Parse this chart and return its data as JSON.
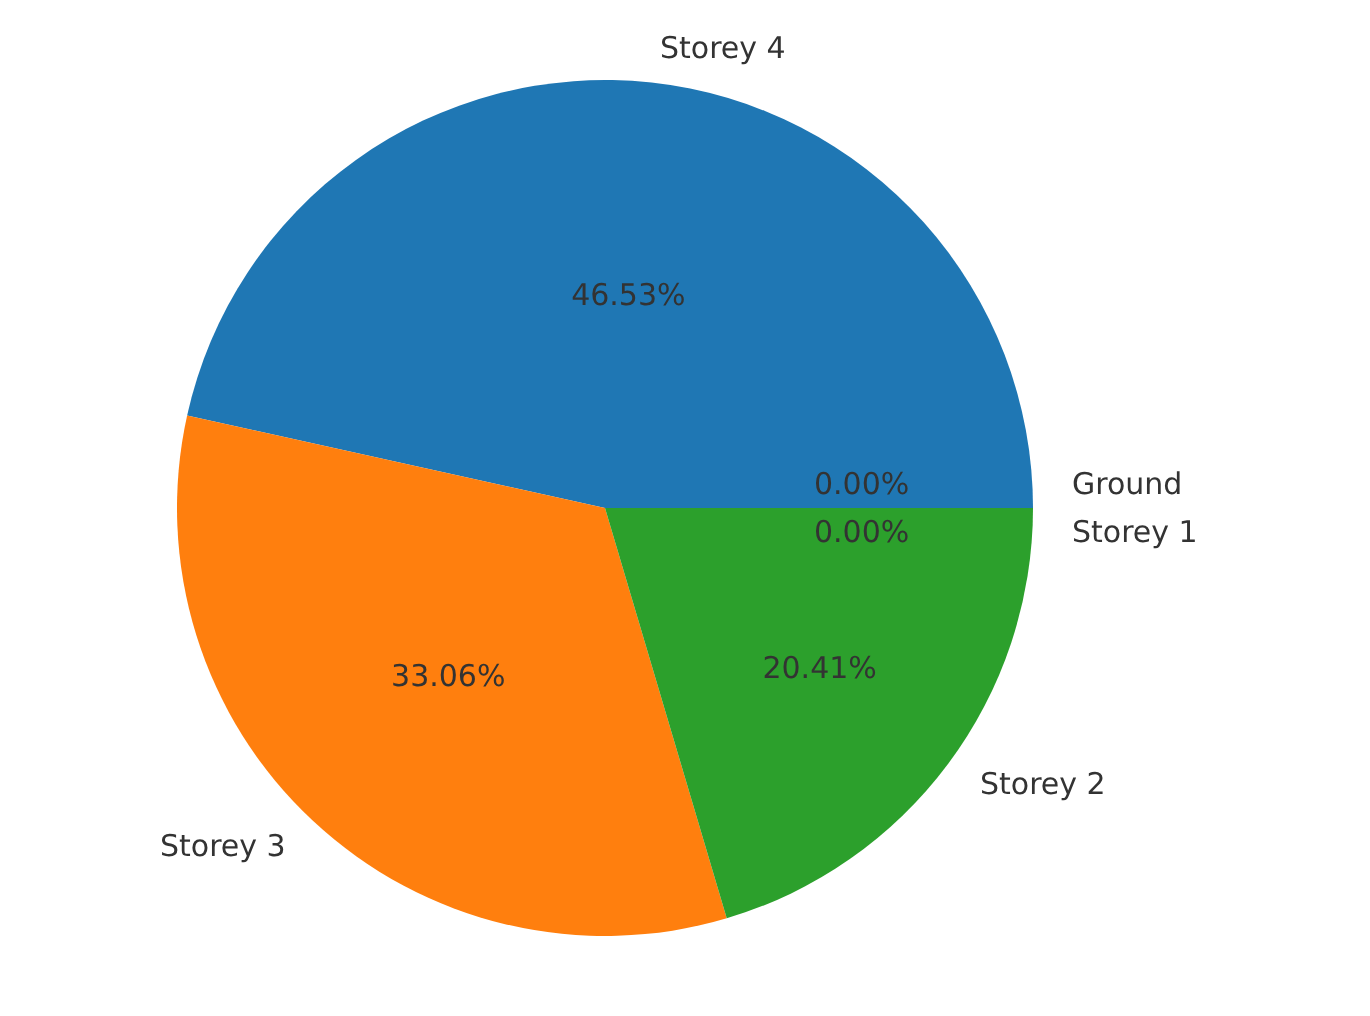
{
  "chart_data": {
    "type": "pie",
    "categories": [
      "Storey 4",
      "Storey 3",
      "Storey 2",
      "Storey 1",
      "Ground"
    ],
    "values": [
      46.53,
      33.06,
      20.41,
      0,
      0
    ],
    "value_labels": [
      "46.53%",
      "33.06%",
      "20.41%",
      "0.00%",
      "0.00%"
    ],
    "colors": [
      "#1f77b4",
      "#ff7f0e",
      "#2ca02c",
      "#d62728",
      "#9467bd"
    ]
  }
}
